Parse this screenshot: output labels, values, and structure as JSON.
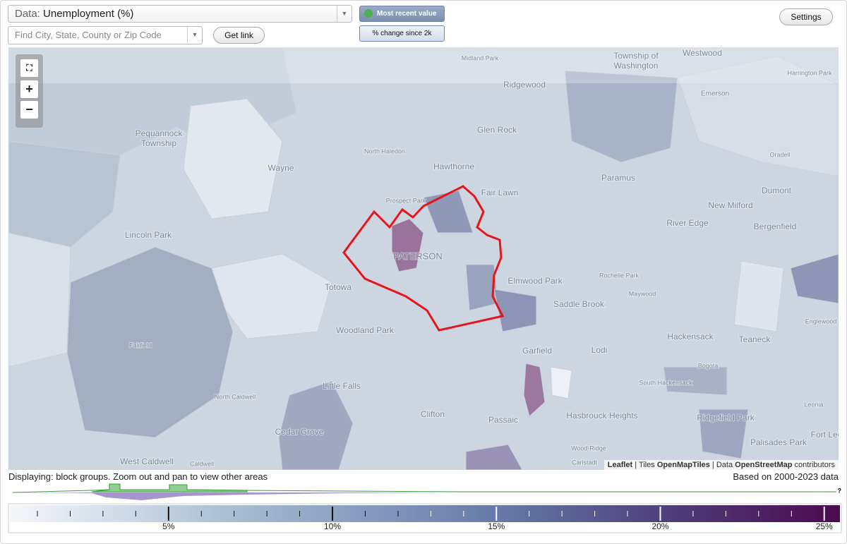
{
  "controls": {
    "data_label": "Data:",
    "data_value": "Unemployment (%)",
    "search_placeholder": "Find City, State, County or Zip Code",
    "get_link": "Get link",
    "most_recent": "Most recent value",
    "pct_change": "% change since 2k",
    "settings": "Settings"
  },
  "map": {
    "zoom_in": "+",
    "zoom_out": "−",
    "labels": [
      "Township of",
      "Washington",
      "Westwood",
      "Midland Park",
      "Ridgewood",
      "Emerson",
      "Harrington Park",
      "Pequannock",
      "Township",
      "Glen Rock",
      "North Haledon",
      "Wayne",
      "Hawthorne",
      "Paramus",
      "Oradell",
      "Fair Lawn",
      "Dumont",
      "New Milford",
      "Prospect Park",
      "Lincoln Park",
      "River Edge",
      "Bergenfield",
      "PATERSON",
      "Rochelle Park",
      "Maywood",
      "Elmwood Park",
      "Totowa",
      "Saddle Brook",
      "Hackensack",
      "Englewood",
      "Woodland Park",
      "Teaneck",
      "Fairfield",
      "Garfield",
      "Lodi",
      "Bogota",
      "South Hackensack",
      "Little Falls",
      "North Caldwell",
      "Clifton",
      "Passaic",
      "Hasbrouck Heights",
      "Ridgefield Park",
      "Leonia",
      "Cedar Grove",
      "Wood-Ridge",
      "Palisades Park",
      "Fort Lee",
      "West Caldwell",
      "Caldwell",
      "Carlstadt"
    ],
    "attribution": [
      "Leaflet",
      "Tiles",
      "OpenMapTiles",
      "Data",
      "OpenStreetMap",
      "contributors"
    ]
  },
  "footer": {
    "displaying": "Displaying: block groups. Zoom out and pan to view other areas",
    "based_on": "Based on 2000-2023 data",
    "help": "?"
  },
  "legend": {
    "range": [
      0.16,
      25.48
    ],
    "ticks": [
      {
        "value": 5,
        "label": "5%"
      },
      {
        "value": 10,
        "label": "10%"
      },
      {
        "value": 15,
        "label": "15%"
      },
      {
        "value": 20,
        "label": "20%"
      },
      {
        "value": 25,
        "label": "25%"
      }
    ],
    "minor_ticks": [
      1,
      2,
      3,
      4,
      6,
      7,
      8,
      9,
      11,
      12,
      13,
      14,
      16,
      17,
      18,
      19,
      21,
      22,
      23,
      24
    ]
  }
}
